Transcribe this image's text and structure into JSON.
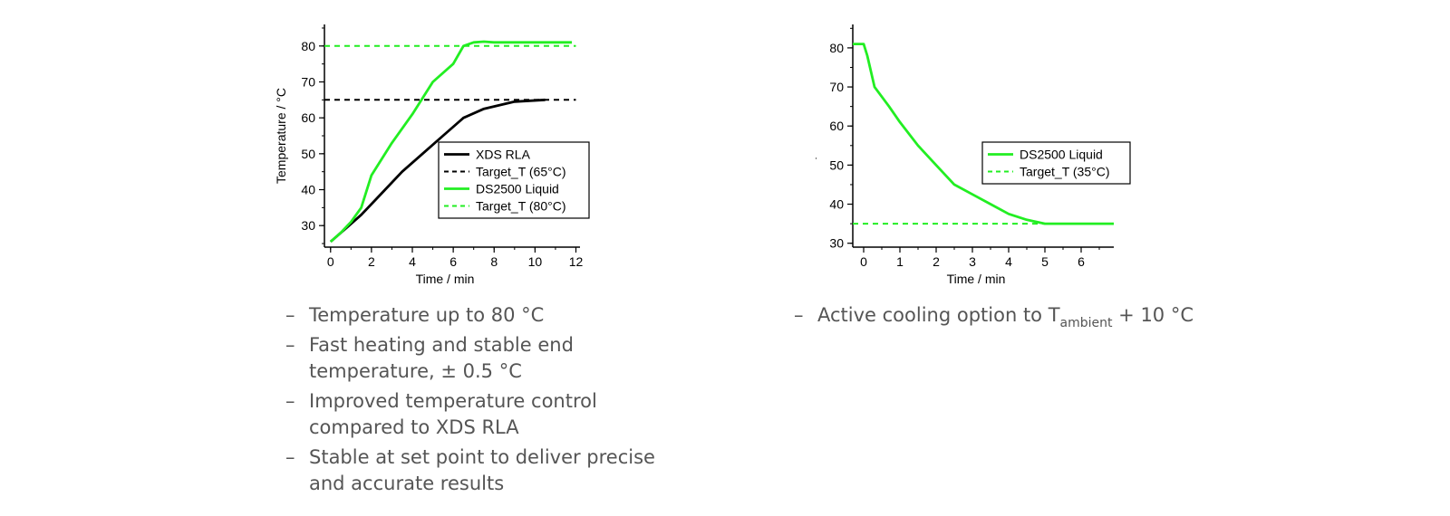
{
  "chart_data": [
    {
      "type": "line",
      "xlabel": "Time / min",
      "ylabel": "Temperature / °C",
      "xlim": [
        -0.3,
        12.2
      ],
      "ylim": [
        24,
        86
      ],
      "xticks": [
        0,
        2,
        4,
        6,
        8,
        10,
        12
      ],
      "yticks": [
        30,
        40,
        50,
        60,
        70,
        80
      ],
      "legend_position": "lower-right",
      "series": [
        {
          "name": "XDS RLA",
          "color": "#000000",
          "dash": false,
          "x": [
            0,
            0.7,
            1.5,
            2.5,
            3.5,
            4.5,
            5.5,
            6.5,
            7.5,
            9,
            10.5
          ],
          "y": [
            25.5,
            29,
            33,
            39,
            45,
            50,
            55,
            60,
            62.5,
            64.5,
            65
          ]
        },
        {
          "name": "Target_T (65°C)",
          "color": "#000000",
          "dash": true,
          "x": [
            -0.3,
            12
          ],
          "y": [
            65,
            65
          ]
        },
        {
          "name": "DS2500 Liquid",
          "color": "#22ee22",
          "dash": false,
          "x": [
            0,
            0.5,
            1,
            1.5,
            2,
            3,
            4,
            5,
            6,
            6.5,
            7,
            7.5,
            8,
            10,
            11.8
          ],
          "y": [
            25.5,
            28,
            31,
            35,
            44,
            53,
            61,
            70,
            75,
            80,
            81,
            81.2,
            81,
            81,
            81
          ]
        },
        {
          "name": "Target_T (80°C)",
          "color": "#22ee22",
          "dash": true,
          "x": [
            -0.3,
            12
          ],
          "y": [
            80,
            80
          ]
        }
      ]
    },
    {
      "type": "line",
      "xlabel": "Time / min",
      "ylabel": "Temperature / °C",
      "xlim": [
        -0.3,
        6.9
      ],
      "ylim": [
        29,
        86
      ],
      "xticks": [
        0,
        1,
        2,
        3,
        4,
        5,
        6
      ],
      "yticks": [
        30,
        40,
        50,
        60,
        70,
        80
      ],
      "legend_position": "right",
      "series": [
        {
          "name": "DS2500 Liquid",
          "color": "#22ee22",
          "dash": false,
          "x": [
            -0.3,
            0,
            0.1,
            0.3,
            0.7,
            1,
            1.5,
            2,
            2.5,
            3,
            3.5,
            4,
            4.5,
            5,
            6,
            6.9
          ],
          "y": [
            81,
            81,
            78,
            70,
            65,
            61,
            55,
            50,
            45,
            42.5,
            40,
            37.5,
            36,
            35,
            35,
            35
          ]
        },
        {
          "name": "Target_T (35°C)",
          "color": "#22ee22",
          "dash": true,
          "x": [
            -0.3,
            6.9
          ],
          "y": [
            35,
            35
          ]
        }
      ]
    }
  ],
  "bullets_left": [
    {
      "dash": "–",
      "text": "Temperature up to 80 °C"
    },
    {
      "dash": "–",
      "text": "Fast heating and stable end temperature, ± 0.5 °C"
    },
    {
      "dash": "–",
      "text": "Improved temperature control compared to XDS RLA"
    },
    {
      "dash": "–",
      "text": "Stable at set point to deliver precise and accurate results"
    }
  ],
  "bullets_right": {
    "dash": "–",
    "text_before": "Active cooling option to T",
    "subscript": "ambient",
    "text_after": " + 10 °C"
  }
}
